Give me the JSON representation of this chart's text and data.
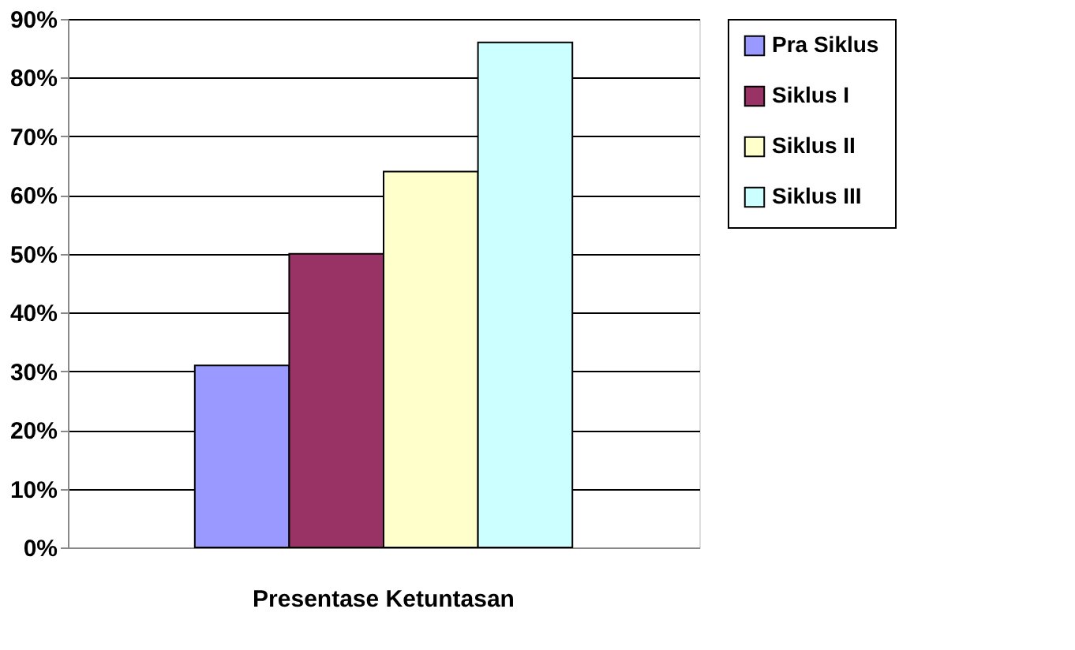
{
  "chart_data": {
    "type": "bar",
    "categories": [
      "Presentase Ketuntasan"
    ],
    "series": [
      {
        "name": "Pra Siklus",
        "color": "#9999ff",
        "values": [
          31
        ]
      },
      {
        "name": "Siklus I",
        "color": "#993366",
        "values": [
          50
        ]
      },
      {
        "name": "Siklus II",
        "color": "#ffffcc",
        "values": [
          64
        ]
      },
      {
        "name": "Siklus III",
        "color": "#ccffff",
        "values": [
          86
        ]
      }
    ],
    "ylim": [
      0,
      90
    ],
    "yticks": [
      {
        "value": 0,
        "label": "0%"
      },
      {
        "value": 10,
        "label": "10%"
      },
      {
        "value": 20,
        "label": "20%"
      },
      {
        "value": 30,
        "label": "30%"
      },
      {
        "value": 40,
        "label": "40%"
      },
      {
        "value": 50,
        "label": "50%"
      },
      {
        "value": 60,
        "label": "60%"
      },
      {
        "value": 70,
        "label": "70%"
      },
      {
        "value": 80,
        "label": "80%"
      },
      {
        "value": 90,
        "label": "90%"
      }
    ],
    "grid": "y",
    "legend": "right"
  }
}
